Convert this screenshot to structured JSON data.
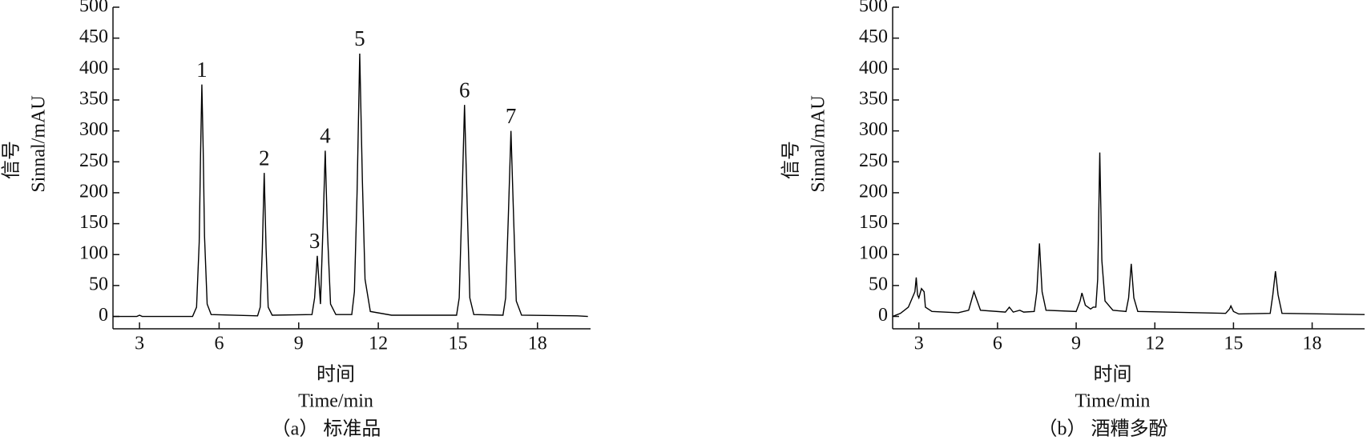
{
  "chart_data": [
    {
      "type": "line",
      "caption": "（a） 标准品",
      "xlabel": "时间",
      "xlabel_en": "Time/min",
      "ylabel": "信号",
      "ylabel_en": "Sinnal/mAU",
      "xlim": [
        2,
        20
      ],
      "xticks": [
        3,
        6,
        9,
        12,
        15,
        18
      ],
      "ylim": [
        -20,
        500
      ],
      "yticks": [
        0,
        50,
        100,
        150,
        200,
        250,
        300,
        350,
        400,
        450,
        500
      ],
      "color": "#000000",
      "x": [
        2.0,
        2.9,
        3.0,
        3.1,
        5.0,
        5.15,
        5.25,
        5.3,
        5.35,
        5.4,
        5.45,
        5.55,
        5.7,
        7.45,
        7.55,
        7.63,
        7.7,
        7.77,
        7.85,
        8.0,
        9.5,
        9.6,
        9.7,
        9.82,
        9.92,
        10.0,
        10.08,
        10.2,
        10.4,
        11.0,
        11.1,
        11.2,
        11.3,
        11.4,
        11.5,
        11.7,
        12.5,
        14.95,
        15.05,
        15.15,
        15.25,
        15.35,
        15.45,
        15.6,
        16.7,
        16.8,
        16.9,
        17.0,
        17.1,
        17.2,
        17.4,
        19.5,
        19.9
      ],
      "values": [
        0,
        0,
        2,
        0,
        0,
        15,
        120,
        260,
        375,
        270,
        130,
        20,
        3,
        1,
        15,
        110,
        232,
        110,
        15,
        2,
        3,
        30,
        98,
        20,
        150,
        268,
        140,
        20,
        3,
        3,
        40,
        200,
        425,
        220,
        60,
        8,
        2,
        2,
        30,
        180,
        342,
        180,
        30,
        3,
        2,
        30,
        160,
        300,
        160,
        25,
        2,
        1,
        0
      ],
      "annotations": [
        {
          "text": "1",
          "x": 5.35,
          "y": 375
        },
        {
          "text": "2",
          "x": 7.7,
          "y": 232
        },
        {
          "text": "3",
          "x": 9.6,
          "y": 98
        },
        {
          "text": "4",
          "x": 10.0,
          "y": 268
        },
        {
          "text": "5",
          "x": 11.3,
          "y": 425
        },
        {
          "text": "6",
          "x": 15.25,
          "y": 342
        },
        {
          "text": "7",
          "x": 17.0,
          "y": 300
        }
      ]
    },
    {
      "type": "line",
      "caption": "（b） 酒糟多酚",
      "xlabel": "时间",
      "xlabel_en": "Time/min",
      "ylabel": "信号",
      "ylabel_en": "Sinnal/mAU",
      "xlim": [
        2,
        20
      ],
      "xticks": [
        3,
        6,
        9,
        12,
        15,
        18
      ],
      "ylim": [
        -20,
        500
      ],
      "yticks": [
        0,
        50,
        100,
        150,
        200,
        250,
        300,
        350,
        400,
        450,
        500
      ],
      "color": "#000000",
      "x": [
        2.0,
        2.3,
        2.6,
        2.75,
        2.85,
        2.9,
        2.95,
        3.0,
        3.1,
        3.2,
        3.25,
        3.5,
        4.5,
        4.9,
        5.0,
        5.1,
        5.2,
        5.35,
        6.3,
        6.45,
        6.6,
        6.85,
        7.0,
        7.4,
        7.5,
        7.6,
        7.7,
        7.85,
        9.0,
        9.15,
        9.22,
        9.35,
        9.55,
        9.65,
        9.75,
        9.82,
        9.9,
        9.98,
        10.1,
        10.4,
        10.9,
        11.0,
        11.1,
        11.2,
        11.35,
        14.7,
        14.85,
        14.9,
        15.0,
        15.2,
        16.4,
        16.5,
        16.6,
        16.7,
        16.85,
        20.0
      ],
      "values": [
        0,
        5,
        15,
        30,
        40,
        63,
        35,
        30,
        45,
        40,
        15,
        8,
        6,
        10,
        25,
        40,
        28,
        10,
        7,
        15,
        7,
        10,
        7,
        8,
        40,
        118,
        40,
        10,
        8,
        25,
        38,
        18,
        12,
        15,
        15,
        60,
        265,
        90,
        25,
        10,
        8,
        30,
        85,
        30,
        8,
        5,
        12,
        17,
        8,
        4,
        5,
        35,
        73,
        35,
        5,
        3
      ]
    }
  ]
}
